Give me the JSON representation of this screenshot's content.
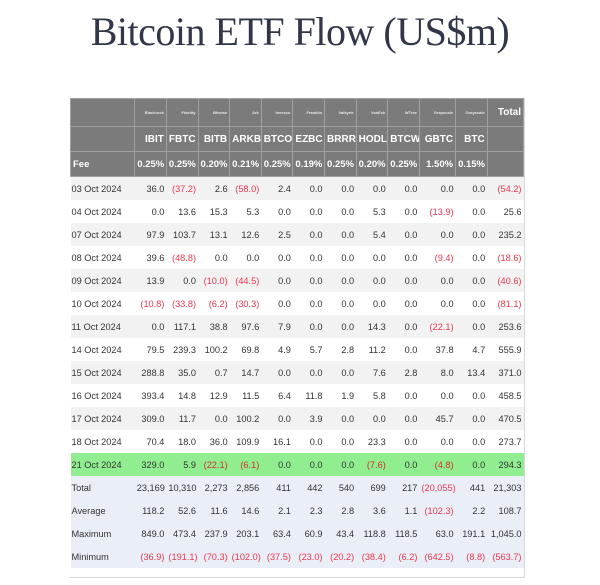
{
  "title": "Bitcoin ETF Flow (US$m)",
  "colors": {
    "header_bg": "#7b7b7b",
    "negative": "#e8384f",
    "highlight_row": "#90ee90",
    "summary_bg": "#eaeef7"
  },
  "header": {
    "issuers": [
      "Blackrock",
      "Fidelity",
      "Bitwise",
      "Ark",
      "Invesco",
      "Franklin",
      "Valkyrie",
      "VanEck",
      "WTree",
      "Grayscale",
      "Grayscale"
    ],
    "total_label": "Total",
    "tickers": [
      "IBIT",
      "FBTC",
      "BITB",
      "ARKB",
      "BTCO",
      "EZBC",
      "BRRR",
      "HODL",
      "BTCW",
      "GBTC",
      "BTC"
    ],
    "fee_label": "Fee",
    "fees": [
      "0.25%",
      "0.25%",
      "0.20%",
      "0.21%",
      "0.25%",
      "0.19%",
      "0.25%",
      "0.20%",
      "0.25%",
      "1.50%",
      "0.15%"
    ]
  },
  "rows": [
    {
      "date": "03 Oct 2024",
      "values": [
        "36.0",
        "(37.2)",
        "2.6",
        "(58.0)",
        "2.4",
        "0.0",
        "0.0",
        "0.0",
        "0.0",
        "0.0",
        "0.0"
      ],
      "total": "(54.2)"
    },
    {
      "date": "04 Oct 2024",
      "values": [
        "0.0",
        "13.6",
        "15.3",
        "5.3",
        "0.0",
        "0.0",
        "0.0",
        "5.3",
        "0.0",
        "(13.9)",
        "0.0"
      ],
      "total": "25.6"
    },
    {
      "date": "07 Oct 2024",
      "values": [
        "97.9",
        "103.7",
        "13.1",
        "12.6",
        "2.5",
        "0.0",
        "0.0",
        "5.4",
        "0.0",
        "0.0",
        "0.0"
      ],
      "total": "235.2"
    },
    {
      "date": "08 Oct 2024",
      "values": [
        "39.6",
        "(48.8)",
        "0.0",
        "0.0",
        "0.0",
        "0.0",
        "0.0",
        "0.0",
        "0.0",
        "(9.4)",
        "0.0"
      ],
      "total": "(18.6)"
    },
    {
      "date": "09 Oct 2024",
      "values": [
        "13.9",
        "0.0",
        "(10.0)",
        "(44.5)",
        "0.0",
        "0.0",
        "0.0",
        "0.0",
        "0.0",
        "0.0",
        "0.0"
      ],
      "total": "(40.6)"
    },
    {
      "date": "10 Oct 2024",
      "values": [
        "(10.8)",
        "(33.8)",
        "(6.2)",
        "(30.3)",
        "0.0",
        "0.0",
        "0.0",
        "0.0",
        "0.0",
        "0.0",
        "0.0"
      ],
      "total": "(81.1)"
    },
    {
      "date": "11 Oct 2024",
      "values": [
        "0.0",
        "117.1",
        "38.8",
        "97.6",
        "7.9",
        "0.0",
        "0.0",
        "14.3",
        "0.0",
        "(22.1)",
        "0.0"
      ],
      "total": "253.6"
    },
    {
      "date": "14 Oct 2024",
      "values": [
        "79.5",
        "239.3",
        "100.2",
        "69.8",
        "4.9",
        "5.7",
        "2.8",
        "11.2",
        "0.0",
        "37.8",
        "4.7"
      ],
      "total": "555.9"
    },
    {
      "date": "15 Oct 2024",
      "values": [
        "288.8",
        "35.0",
        "0.7",
        "14.7",
        "0.0",
        "0.0",
        "0.0",
        "7.6",
        "2.8",
        "8.0",
        "13.4"
      ],
      "total": "371.0"
    },
    {
      "date": "16 Oct 2024",
      "values": [
        "393.4",
        "14.8",
        "12.9",
        "11.5",
        "6.4",
        "11.8",
        "1.9",
        "5.8",
        "0.0",
        "0.0",
        "0.0"
      ],
      "total": "458.5"
    },
    {
      "date": "17 Oct 2024",
      "values": [
        "309.0",
        "11.7",
        "0.0",
        "100.2",
        "0.0",
        "3.9",
        "0.0",
        "0.0",
        "0.0",
        "45.7",
        "0.0"
      ],
      "total": "470.5"
    },
    {
      "date": "18 Oct 2024",
      "values": [
        "70.4",
        "18.0",
        "36.0",
        "109.9",
        "16.1",
        "0.0",
        "0.0",
        "23.3",
        "0.0",
        "0.0",
        "0.0"
      ],
      "total": "273.7"
    },
    {
      "date": "21 Oct 2024",
      "values": [
        "329.0",
        "5.9",
        "(22.1)",
        "(6.1)",
        "0.0",
        "0.0",
        "0.0",
        "(7.6)",
        "0.0",
        "(4.8)",
        "0.0"
      ],
      "total": "294.3"
    }
  ],
  "summary": [
    {
      "label": "Total",
      "values": [
        "23,169",
        "10,310",
        "2,273",
        "2,856",
        "411",
        "442",
        "540",
        "699",
        "217",
        "(20,055)",
        "441"
      ],
      "total": "21,303"
    },
    {
      "label": "Average",
      "values": [
        "118.2",
        "52.6",
        "11.6",
        "14.6",
        "2.1",
        "2.3",
        "2.8",
        "3.6",
        "1.1",
        "(102.3)",
        "2.2"
      ],
      "total": "108.7"
    },
    {
      "label": "Maximum",
      "values": [
        "849.0",
        "473.4",
        "237.9",
        "203.1",
        "63.4",
        "60.9",
        "43.4",
        "118.8",
        "118.5",
        "63.0",
        "191.1"
      ],
      "total": "1,045.0"
    },
    {
      "label": "Minimum",
      "values": [
        "(36.9)",
        "(191.1)",
        "(70.3)",
        "(102.0)",
        "(37.5)",
        "(23.0)",
        "(20.2)",
        "(38.4)",
        "(6.2)",
        "(642.5)",
        "(8.8)"
      ],
      "total": "(563.7)"
    }
  ]
}
